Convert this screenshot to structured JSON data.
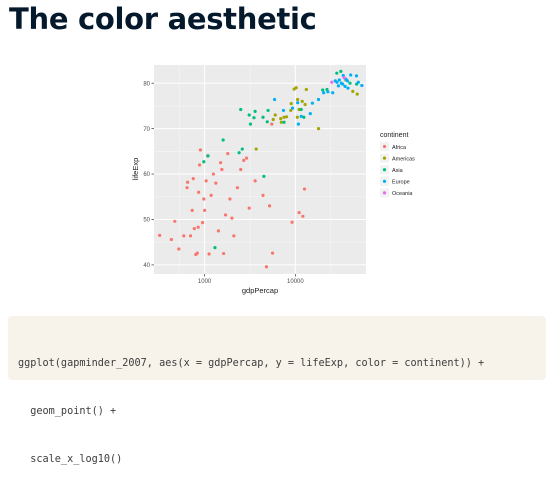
{
  "slide": {
    "title": "The color aesthetic"
  },
  "code": {
    "lines": [
      "ggplot(gapminder_2007, aes(x = gdpPercap, y = lifeExp, color = continent)) +",
      "  geom_point() +",
      "  scale_x_log10()"
    ]
  },
  "chart_data": {
    "type": "scatter",
    "title": "",
    "xlabel": "gdpPercap",
    "ylabel": "lifeExp",
    "x_scale": "log10",
    "xlim": [
      277,
      60000
    ],
    "ylim": [
      38,
      84
    ],
    "x_ticks": [
      1000,
      10000
    ],
    "x_tick_labels": [
      "1000",
      "10000"
    ],
    "y_ticks": [
      40,
      50,
      60,
      70,
      80
    ],
    "y_tick_labels": [
      "40",
      "50",
      "60",
      "70",
      "80"
    ],
    "grid": true,
    "panel_background": "#ebebeb",
    "legend_title": "continent",
    "legend_position": "right",
    "series": [
      {
        "name": "Africa",
        "color": "#f8766d",
        "points": [
          [
            320,
            46.5
          ],
          [
            430,
            45.6
          ],
          [
            470,
            49.6
          ],
          [
            520,
            43.5
          ],
          [
            590,
            46.4
          ],
          [
            640,
            57.0
          ],
          [
            650,
            58.2
          ],
          [
            700,
            46.4
          ],
          [
            730,
            52.0
          ],
          [
            750,
            59.0
          ],
          [
            770,
            48.0
          ],
          [
            800,
            42.3
          ],
          [
            830,
            42.6
          ],
          [
            850,
            48.3
          ],
          [
            860,
            56.0
          ],
          [
            880,
            62.0
          ],
          [
            900,
            65.3
          ],
          [
            950,
            49.3
          ],
          [
            980,
            54.5
          ],
          [
            1000,
            52.0
          ],
          [
            1040,
            58.5
          ],
          [
            1080,
            64.0
          ],
          [
            1120,
            42.4
          ],
          [
            1180,
            55.3
          ],
          [
            1250,
            60.0
          ],
          [
            1330,
            58.0
          ],
          [
            1420,
            47.5
          ],
          [
            1500,
            62.5
          ],
          [
            1550,
            61.0
          ],
          [
            1620,
            42.5
          ],
          [
            1700,
            51.0
          ],
          [
            1800,
            64.5
          ],
          [
            1900,
            54.5
          ],
          [
            2000,
            50.3
          ],
          [
            2100,
            46.4
          ],
          [
            2300,
            57.0
          ],
          [
            2500,
            61.0
          ],
          [
            2700,
            63.0
          ],
          [
            2900,
            63.5
          ],
          [
            3100,
            52.5
          ],
          [
            3600,
            58.5
          ],
          [
            4400,
            55.3
          ],
          [
            4800,
            39.6
          ],
          [
            5200,
            53.0
          ],
          [
            5600,
            42.6
          ],
          [
            5500,
            71.0
          ],
          [
            9200,
            49.4
          ],
          [
            11000,
            51.5
          ],
          [
            12100,
            50.7
          ],
          [
            12600,
            56.7
          ]
        ]
      },
      {
        "name": "Americas",
        "color": "#a3a500",
        "points": [
          [
            3700,
            65.5
          ],
          [
            5700,
            72.0
          ],
          [
            6000,
            73.0
          ],
          [
            6900,
            72.2
          ],
          [
            7000,
            71.4
          ],
          [
            7500,
            72.5
          ],
          [
            8000,
            72.6
          ],
          [
            8900,
            74.0
          ],
          [
            9000,
            75.5
          ],
          [
            9700,
            78.7
          ],
          [
            10200,
            79.0
          ],
          [
            10500,
            72.5
          ],
          [
            10600,
            76.4
          ],
          [
            11000,
            74.2
          ],
          [
            11900,
            76.0
          ],
          [
            12800,
            75.3
          ],
          [
            13200,
            78.6
          ],
          [
            18000,
            70.0
          ],
          [
            36000,
            80.7
          ],
          [
            42900,
            78.2
          ],
          [
            48000,
            77.6
          ]
        ]
      },
      {
        "name": "Asia",
        "color": "#00bf7d",
        "points": [
          [
            980,
            62.7
          ],
          [
            1090,
            64.0
          ],
          [
            1300,
            43.8
          ],
          [
            1600,
            67.5
          ],
          [
            2400,
            64.7
          ],
          [
            2600,
            65.5
          ],
          [
            2500,
            74.2
          ],
          [
            3100,
            73.0
          ],
          [
            3200,
            71.0
          ],
          [
            3500,
            72.4
          ],
          [
            3600,
            73.8
          ],
          [
            4400,
            72.5
          ],
          [
            4900,
            71.5
          ],
          [
            4500,
            59.5
          ],
          [
            5000,
            74.0
          ],
          [
            7500,
            71.4
          ],
          [
            12400,
            72.5
          ],
          [
            11600,
            74.2
          ],
          [
            20000,
            78.5
          ],
          [
            22300,
            78.6
          ],
          [
            28600,
            82.2
          ],
          [
            31700,
            82.6
          ],
          [
            40000,
            80.0
          ],
          [
            47300,
            79.8
          ]
        ]
      },
      {
        "name": "Europe",
        "color": "#00b0f6",
        "points": [
          [
            5900,
            76.4
          ],
          [
            7400,
            74.0
          ],
          [
            9300,
            74.5
          ],
          [
            10600,
            75.7
          ],
          [
            10800,
            71.0
          ],
          [
            11600,
            72.7
          ],
          [
            14600,
            73.3
          ],
          [
            15400,
            75.6
          ],
          [
            18000,
            76.4
          ],
          [
            20500,
            77.9
          ],
          [
            22800,
            78.1
          ],
          [
            25800,
            77.9
          ],
          [
            27500,
            80.5
          ],
          [
            28700,
            80.2
          ],
          [
            29800,
            79.4
          ],
          [
            30500,
            80.7
          ],
          [
            32100,
            80.0
          ],
          [
            33200,
            79.8
          ],
          [
            33700,
            81.7
          ],
          [
            35300,
            79.3
          ],
          [
            36100,
            80.9
          ],
          [
            37500,
            80.5
          ],
          [
            40700,
            81.8
          ],
          [
            38000,
            78.9
          ],
          [
            47100,
            81.6
          ],
          [
            49400,
            80.2
          ],
          [
            54000,
            79.5
          ]
        ]
      },
      {
        "name": "Oceania",
        "color": "#e76bf3",
        "points": [
          [
            25200,
            80.2
          ],
          [
            34400,
            81.2
          ]
        ]
      }
    ]
  }
}
